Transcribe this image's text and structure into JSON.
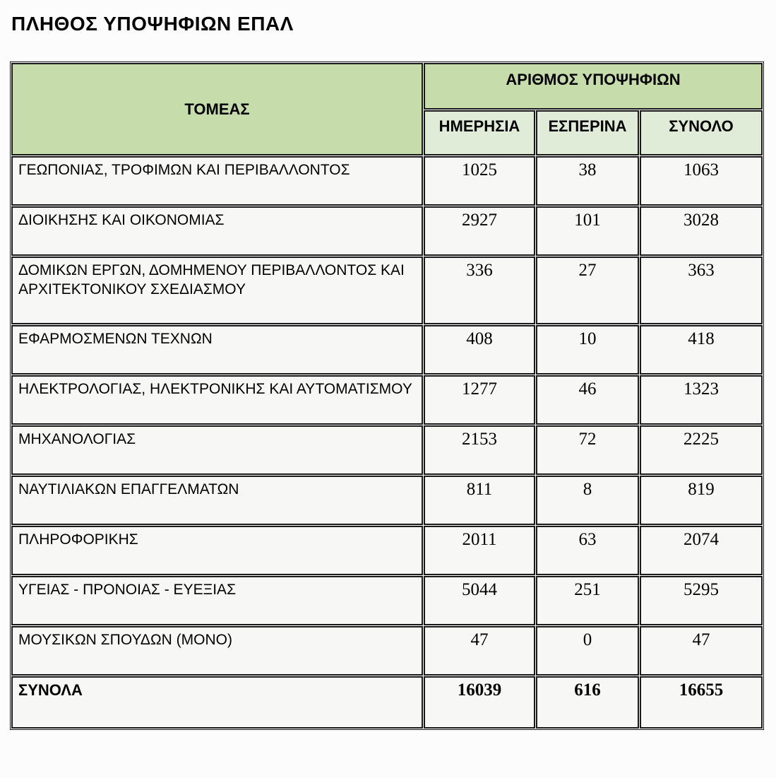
{
  "page": {
    "title": "ΠΛΗΘΟΣ ΥΠΟΨΗΦΙΩΝ ΕΠΑΛ"
  },
  "table": {
    "header": {
      "sector": "ΤΟΜΕΑΣ",
      "candidates_group": "ΑΡΙΘΜΟΣ ΥΠΟΨΗΦΙΩΝ",
      "col_day": "ΗΜΕΡΗΣΙΑ",
      "col_evening": "ΕΣΠΕΡΙΝΑ",
      "col_total": "ΣΥΝΟΛΟ"
    },
    "rows": [
      {
        "label": "ΓΕΩΠΟΝΙΑΣ, ΤΡΟΦΙΜΩΝ ΚΑΙ ΠΕΡΙΒΑΛΛΟΝΤΟΣ",
        "day": "1025",
        "evening": "38",
        "total": "1063"
      },
      {
        "label": "ΔΙΟΙΚΗΣΗΣ ΚΑΙ ΟΙΚΟΝΟΜΙΑΣ",
        "day": "2927",
        "evening": "101",
        "total": "3028"
      },
      {
        "label": "ΔΟΜΙΚΩΝ ΕΡΓΩΝ, ΔΟΜΗΜΕΝΟΥ ΠΕΡΙΒΑΛΛΟΝΤΟΣ ΚΑΙ ΑΡΧΙΤΕΚΤΟΝΙΚΟΥ ΣΧΕΔΙΑΣΜΟΥ",
        "day": "336",
        "evening": "27",
        "total": "363"
      },
      {
        "label": "ΕΦΑΡΜΟΣΜΕΝΩΝ ΤΕΧΝΩΝ",
        "day": "408",
        "evening": "10",
        "total": "418"
      },
      {
        "label": "ΗΛΕΚΤΡΟΛΟΓΙΑΣ, ΗΛΕΚΤΡΟΝΙΚΗΣ ΚΑΙ ΑΥΤΟΜΑΤΙΣΜΟΥ",
        "day": "1277",
        "evening": "46",
        "total": "1323"
      },
      {
        "label": "ΜΗΧΑΝΟΛΟΓΙΑΣ",
        "day": "2153",
        "evening": "72",
        "total": "2225"
      },
      {
        "label": "ΝΑΥΤΙΛΙΑΚΩΝ ΕΠΑΓΓΕΛΜΑΤΩΝ",
        "day": "811",
        "evening": "8",
        "total": "819"
      },
      {
        "label": "ΠΛΗΡΟΦΟΡΙΚΗΣ",
        "day": "2011",
        "evening": "63",
        "total": "2074"
      },
      {
        "label": "ΥΓΕΙΑΣ - ΠΡΟΝΟΙΑΣ - ΕΥΕΞΙΑΣ",
        "day": "5044",
        "evening": "251",
        "total": "5295"
      },
      {
        "label": "ΜΟΥΣΙΚΩΝ ΣΠΟΥΔΩΝ (ΜΟΝΟ)",
        "day": "47",
        "evening": "0",
        "total": "47"
      }
    ],
    "totals": {
      "label": "ΣΥΝΟΛΑ",
      "day": "16039",
      "evening": "616",
      "total": "16655"
    }
  },
  "colors": {
    "header_green": "#c6dcab",
    "subheader_green": "#e0ecd7",
    "cell_background": "#f7f7f5",
    "border": "#1a1a1a"
  }
}
